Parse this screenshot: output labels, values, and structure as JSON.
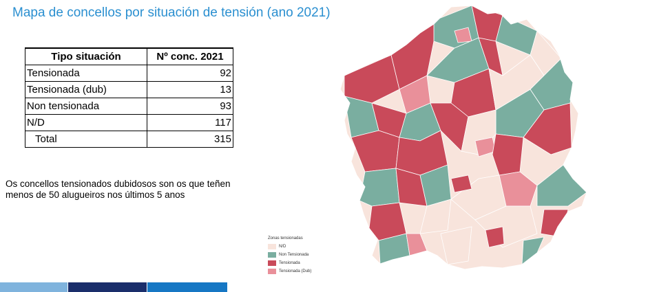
{
  "title": "Mapa de concellos por situación de tensión (ano 2021)",
  "table": {
    "headers": [
      "Tipo situación",
      "Nº conc. 2021"
    ],
    "rows": [
      {
        "label": "Tensionada",
        "value": "92"
      },
      {
        "label": "Tensionada (dub)",
        "value": "13"
      },
      {
        "label": "Non tensionada",
        "value": "93"
      },
      {
        "label": "N/D",
        "value": "117"
      }
    ],
    "total": {
      "label": "Total",
      "value": "315"
    }
  },
  "note": "Os concellos tensionados dubidosos son os que teñen menos de 50 alugueiros nos últimos 5 anos",
  "legend": {
    "title": "Zonas tensionadas",
    "items": [
      {
        "label": "N/D",
        "color": "#f8e4dc"
      },
      {
        "label": "Non Tensionada",
        "color": "#7aaea0"
      },
      {
        "label": "Tensionada",
        "color": "#c94a5a"
      },
      {
        "label": "Tensionada (Dub)",
        "color": "#e9909a"
      }
    ]
  }
}
